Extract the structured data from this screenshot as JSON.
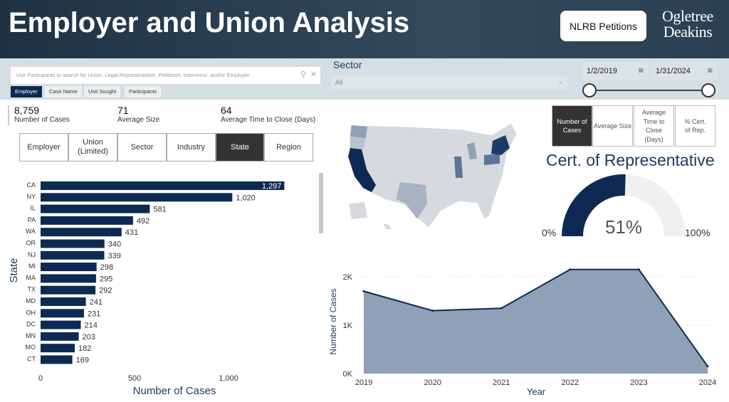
{
  "header": {
    "title": "Employer and Union Analysis",
    "nlrb_button": "NLRB Petitions",
    "logo_line1": "Ogletree",
    "logo_line2": "Deakins"
  },
  "search": {
    "placeholder": "Use Participants to search for Union, Legal Representative, Petitioner, Intervenor, and/or Employer",
    "tabs": [
      "Employer",
      "Case Name",
      "Unit Sought",
      "Participants"
    ],
    "active_tab": "Employer"
  },
  "sector": {
    "label": "Sector",
    "value": "All"
  },
  "date_range": {
    "start": "1/2/2019",
    "end": "1/31/2024"
  },
  "kpis": [
    {
      "value": "8,759",
      "label": "Number of Cases"
    },
    {
      "value": "71",
      "label": "Average Size"
    },
    {
      "value": "64",
      "label": "Average Time to Close (Days)"
    }
  ],
  "dimension_tabs": [
    "Employer",
    "Union (Limited)",
    "Sector",
    "Industry",
    "State",
    "Region"
  ],
  "active_dimension": "State",
  "measure_tabs": [
    "Number of Cases",
    "Average Size",
    "Average Time to Close (Days)",
    "% Cert. of Rep."
  ],
  "active_measure": "Number of Cases",
  "gauge": {
    "title": "Cert. of Representative",
    "value": 51,
    "value_label": "51%",
    "min_label": "0%",
    "max_label": "100%",
    "fill_color": "#0e2a52",
    "track_color": "#f0f0f0"
  },
  "map": {
    "highlight_states": [
      "CA",
      "NY",
      "IL",
      "PA",
      "WA"
    ]
  },
  "chart_data": [
    {
      "type": "bar",
      "orientation": "horizontal",
      "ylabel": "State",
      "xlabel": "Number of Cases",
      "categories": [
        "CA",
        "NY",
        "IL",
        "PA",
        "WA",
        "OR",
        "NJ",
        "MI",
        "MA",
        "TX",
        "MD",
        "OH",
        "DC",
        "MN",
        "MO",
        "CT"
      ],
      "values": [
        1297,
        1020,
        581,
        492,
        431,
        340,
        339,
        298,
        295,
        292,
        241,
        231,
        214,
        203,
        182,
        169
      ],
      "value_labels": [
        "1,297",
        "1,020",
        "581",
        "492",
        "431",
        "340",
        "339",
        "298",
        "295",
        "292",
        "241",
        "231",
        "214",
        "203",
        "182",
        "169"
      ],
      "xticks": [
        0,
        500,
        1000
      ],
      "xtick_labels": [
        "0",
        "500",
        "1,000"
      ],
      "xlim": [
        0,
        1450
      ],
      "color": "#0e2a52"
    },
    {
      "type": "area",
      "xlabel": "Year",
      "ylabel": "Number of Cases",
      "x": [
        2019,
        2020,
        2021,
        2022,
        2023,
        2024
      ],
      "values": [
        1700,
        1300,
        1350,
        2150,
        2150,
        150
      ],
      "yticks": [
        0,
        1000,
        2000
      ],
      "ytick_labels": [
        "0K",
        "1K",
        "2K"
      ],
      "ylim": [
        0,
        2400
      ],
      "fill_color": "#8fa0b7",
      "line_color": "#0e2a52"
    }
  ]
}
